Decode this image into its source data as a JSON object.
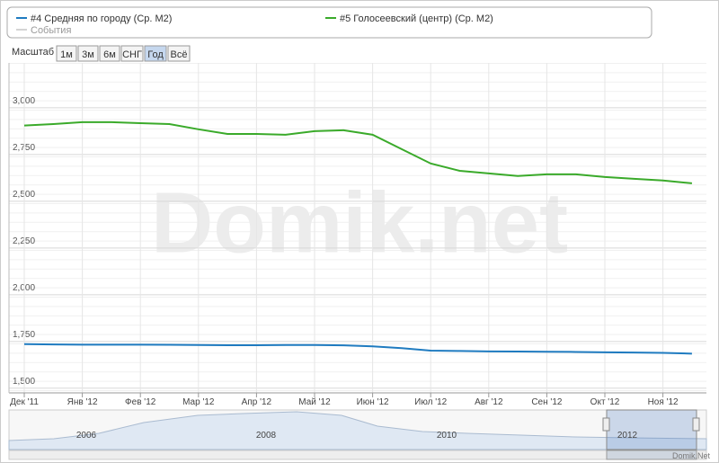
{
  "chart_data": {
    "type": "line",
    "watermark": "Domik.net",
    "credit": "Domik.Net",
    "range_selector": {
      "label": "Масштаб",
      "buttons": [
        "1м",
        "3м",
        "6м",
        "СНГ",
        "Год",
        "Всё"
      ],
      "selected": "Год"
    },
    "events_label": "События",
    "navigator_labels": [
      "2006",
      "2008",
      "2010",
      "2012"
    ],
    "categories": [
      "Дек '11",
      null,
      "Янв '12",
      null,
      "Фев '12",
      null,
      "Мар '12",
      null,
      "Апр '12",
      null,
      "Май '12",
      null,
      "Июн '12",
      null,
      "Июл '12",
      null,
      "Авг '12",
      null,
      "Сен '12",
      null,
      "Окт '12",
      null,
      "Ноя '12",
      null
    ],
    "series": [
      {
        "name": "#4 Средняя по городу (Ср. М2)",
        "color": "#1f7bc0",
        "values": [
          1736,
          1734,
          1733,
          1733,
          1733,
          1732,
          1731,
          1730,
          1730,
          1731,
          1731,
          1729,
          1724,
          1714,
          1701,
          1699,
          1697,
          1696,
          1695,
          1694,
          1692,
          1691,
          1689,
          1685
        ]
      },
      {
        "name": "#5 Голосеевский (центр) (Ср. М2)",
        "color": "#3aaa2a",
        "values": [
          2905,
          2913,
          2923,
          2923,
          2918,
          2913,
          2885,
          2860,
          2860,
          2856,
          2875,
          2880,
          2856,
          2779,
          2702,
          2663,
          2649,
          2635,
          2644,
          2644,
          2630,
          2620,
          2611,
          2596
        ]
      }
    ],
    "ylim": [
      1475,
      3240
    ],
    "yticks": [
      {
        "value": 1500,
        "label": "1,500"
      },
      {
        "value": 1750,
        "label": "1,750"
      },
      {
        "value": 2000,
        "label": "2,000"
      },
      {
        "value": 2250,
        "label": "2,250"
      },
      {
        "value": 2500,
        "label": "2,500"
      },
      {
        "value": 2750,
        "label": "2,750"
      },
      {
        "value": 3000,
        "label": "3,000"
      }
    ],
    "grid": true
  }
}
